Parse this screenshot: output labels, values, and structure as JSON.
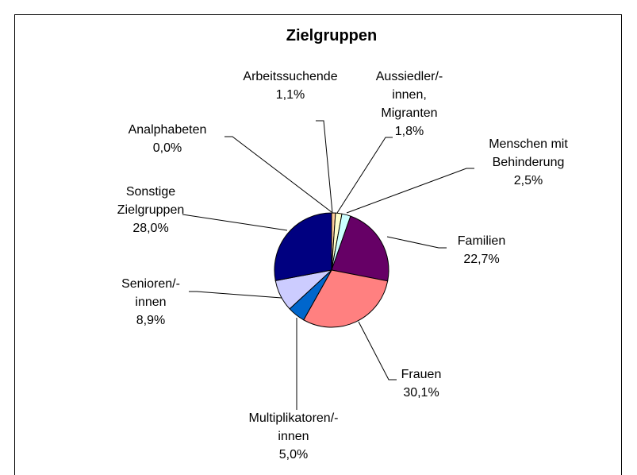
{
  "chart_data": {
    "type": "pie",
    "title": "Zielgruppen",
    "categories": [
      "Arbeitssuchende",
      "Aussiedler/-innen, Migranten",
      "Menschen mit Behinderung",
      "Familien",
      "Frauen",
      "Multiplikatoren/-innen",
      "Senioren/-innen",
      "Sonstige Zielgruppen",
      "Analphabeten"
    ],
    "values": [
      1.1,
      1.8,
      2.5,
      22.7,
      30.1,
      5.0,
      8.9,
      28.0,
      0.0
    ],
    "value_labels": [
      "1,1%",
      "1,8%",
      "2,5%",
      "22,7%",
      "30,1%",
      "5,0%",
      "8,9%",
      "28,0%",
      "0,0%"
    ],
    "colors": [
      "#FFCC99",
      "#FFFFCC",
      "#CCFFFF",
      "#660066",
      "#FF8080",
      "#0066CC",
      "#CCCCFF",
      "#000080",
      "#993366"
    ]
  }
}
